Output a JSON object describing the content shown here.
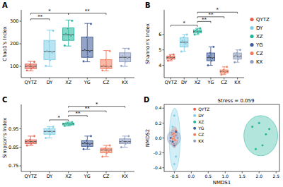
{
  "chart_data": [
    {
      "type": "box",
      "title": "A",
      "y_label": "Chao1's Index",
      "categories": [
        "QYTZ",
        "DY",
        "XZ",
        "YG",
        "CZ",
        "KX"
      ],
      "colors": [
        "#e5604f",
        "#7fcde6",
        "#22b59a",
        "#3d5a99",
        "#f27d5e",
        "#8e9dbf"
      ],
      "ylim": [
        50,
        350
      ],
      "yticks": [
        100,
        200,
        300
      ],
      "boxes": [
        {
          "min": 80,
          "q1": 90,
          "median": 100,
          "q3": 110,
          "max": 122
        },
        {
          "min": 100,
          "q1": 130,
          "median": 165,
          "q3": 215,
          "max": 260
        },
        {
          "min": 190,
          "q1": 215,
          "median": 240,
          "q3": 270,
          "max": 305
        },
        {
          "min": 120,
          "q1": 140,
          "median": 170,
          "q3": 230,
          "max": 290
        },
        {
          "min": 80,
          "q1": 90,
          "median": 100,
          "q3": 130,
          "max": 170
        },
        {
          "min": 100,
          "q1": 120,
          "median": 140,
          "q3": 160,
          "max": 180
        }
      ],
      "points": [
        [
          82,
          90,
          96,
          102,
          108,
          120
        ],
        [
          102,
          128,
          160,
          170,
          210,
          258
        ],
        [
          192,
          218,
          235,
          245,
          268,
          302
        ],
        [
          122,
          142,
          165,
          175,
          228,
          288
        ],
        [
          82,
          92,
          98,
          104,
          128,
          168
        ],
        [
          102,
          122,
          135,
          145,
          158,
          178
        ]
      ],
      "significance": [
        {
          "groups": [
            "QYTZ",
            "XZ"
          ],
          "label": "*",
          "y": 335
        },
        {
          "groups": [
            "XZ",
            "CZ"
          ],
          "label": "**",
          "y": 335
        },
        {
          "groups": [
            "QYTZ",
            "DY"
          ],
          "label": "**",
          "y": 310
        }
      ]
    },
    {
      "type": "box",
      "title": "B",
      "y_label": "Shannon's Index",
      "categories": [
        "QYTZ",
        "DY",
        "XZ",
        "YG",
        "CZ",
        "KX"
      ],
      "colors": [
        "#e5604f",
        "#7fcde6",
        "#22b59a",
        "#3d5a99",
        "#f27d5e",
        "#8e9dbf"
      ],
      "ylim": [
        3.2,
        7.6
      ],
      "yticks": [
        4,
        5,
        6
      ],
      "boxes": [
        {
          "min": 4.3,
          "q1": 4.4,
          "median": 4.5,
          "q3": 4.6,
          "max": 4.7
        },
        {
          "min": 4.9,
          "q1": 5.2,
          "median": 5.5,
          "q3": 5.8,
          "max": 6.0
        },
        {
          "min": 6.0,
          "q1": 6.1,
          "median": 6.2,
          "q3": 6.3,
          "max": 6.4
        },
        {
          "min": 4.0,
          "q1": 4.3,
          "median": 4.5,
          "q3": 4.8,
          "max": 5.2
        },
        {
          "min": 3.4,
          "q1": 3.5,
          "median": 3.6,
          "q3": 3.7,
          "max": 3.9
        },
        {
          "min": 4.2,
          "q1": 4.4,
          "median": 4.6,
          "q3": 4.8,
          "max": 5.0
        }
      ],
      "points": [
        [
          4.3,
          4.4,
          4.45,
          4.55,
          4.6,
          4.7
        ],
        [
          4.9,
          5.2,
          5.4,
          5.6,
          5.8,
          6.0
        ],
        [
          6.0,
          6.1,
          6.2,
          6.25,
          6.3,
          6.4
        ],
        [
          4.0,
          4.3,
          4.45,
          4.6,
          4.8,
          5.2
        ],
        [
          3.4,
          3.5,
          3.55,
          3.65,
          3.7,
          3.9
        ],
        [
          4.2,
          4.4,
          4.55,
          4.65,
          4.8,
          5.0
        ]
      ],
      "significance": [
        {
          "groups": [
            "XZ",
            "KX"
          ],
          "label": "*",
          "y": 7.45
        },
        {
          "groups": [
            "XZ",
            "CZ"
          ],
          "label": "**",
          "y": 7.15
        },
        {
          "groups": [
            "XZ",
            "YG"
          ],
          "label": "**",
          "y": 6.85
        },
        {
          "groups": [
            "QYTZ",
            "XZ"
          ],
          "label": "*",
          "y": 6.6
        }
      ]
    },
    {
      "type": "box",
      "title": "C",
      "y_label": "Simpson's Index",
      "categories": [
        "QYTZ",
        "DY",
        "XZ",
        "YG",
        "CZ",
        "KX"
      ],
      "colors": [
        "#e5604f",
        "#7fcde6",
        "#22b59a",
        "#3d5a99",
        "#f27d5e",
        "#8e9dbf"
      ],
      "ylim": [
        0.72,
        1.08
      ],
      "yticks": [
        0.75,
        0.85,
        0.95
      ],
      "boxes": [
        {
          "min": 0.86,
          "q1": 0.87,
          "median": 0.88,
          "q3": 0.89,
          "max": 0.91
        },
        {
          "min": 0.9,
          "q1": 0.92,
          "median": 0.935,
          "q3": 0.95,
          "max": 0.96
        },
        {
          "min": 0.965,
          "q1": 0.97,
          "median": 0.975,
          "q3": 0.98,
          "max": 0.985
        },
        {
          "min": 0.84,
          "q1": 0.855,
          "median": 0.87,
          "q3": 0.885,
          "max": 0.91
        },
        {
          "min": 0.8,
          "q1": 0.82,
          "median": 0.835,
          "q3": 0.845,
          "max": 0.86
        },
        {
          "min": 0.85,
          "q1": 0.87,
          "median": 0.88,
          "q3": 0.895,
          "max": 0.91
        }
      ],
      "points": [
        [
          0.86,
          0.87,
          0.875,
          0.885,
          0.89,
          0.91
        ],
        [
          0.9,
          0.92,
          0.93,
          0.94,
          0.95,
          0.96
        ],
        [
          0.965,
          0.97,
          0.973,
          0.977,
          0.98,
          0.985
        ],
        [
          0.84,
          0.855,
          0.865,
          0.875,
          0.885,
          0.91
        ],
        [
          0.8,
          0.82,
          0.83,
          0.84,
          0.845,
          0.86
        ],
        [
          0.85,
          0.87,
          0.875,
          0.885,
          0.895,
          0.91
        ]
      ],
      "significance": [
        {
          "groups": [
            "XZ",
            "KX"
          ],
          "label": "*",
          "y": 1.07
        },
        {
          "groups": [
            "XZ",
            "CZ"
          ],
          "label": "**",
          "y": 1.045
        },
        {
          "groups": [
            "XZ",
            "YG"
          ],
          "label": "**",
          "y": 1.02
        },
        {
          "groups": [
            "DY",
            "XZ"
          ],
          "label": "*",
          "y": 0.997
        }
      ]
    },
    {
      "type": "scatter",
      "title": "D",
      "x_label": "NMDS1",
      "y_label": "NMDS2",
      "annotations": [
        "Stress = 0.059"
      ],
      "xlim": [
        -0.8,
        2.6
      ],
      "xticks": [
        -0.5,
        {
          "value": 0,
          "label": "0.0"
        },
        0.5,
        {
          "value": 1,
          "label": "1.0"
        },
        1.5,
        {
          "value": 2,
          "label": "2.0"
        },
        2.5
      ],
      "ylim": [
        -0.45,
        0.45
      ],
      "yticks": [
        -0.4,
        -0.2,
        {
          "value": 0,
          "label": "0.0"
        },
        0.2,
        0.4
      ],
      "series": [
        {
          "name": "QYTZ",
          "color": "#e5604f",
          "x": [
            -0.55,
            -0.5,
            -0.45,
            -0.52,
            -0.48
          ],
          "y": [
            0.05,
            -0.02,
            0.1,
            -0.08,
            0.02
          ],
          "ellipse": {
            "cx": -0.5,
            "cy": 0.01,
            "rx": 0.1,
            "ry": 0.14
          }
        },
        {
          "name": "DY",
          "color": "#7fcde6",
          "x": [
            -0.5,
            -0.45,
            -0.55,
            -0.5,
            -0.42
          ],
          "y": [
            0.3,
            -0.25,
            0.15,
            -0.35,
            0.0
          ],
          "ellipse": {
            "cx": -0.49,
            "cy": -0.02,
            "rx": 0.16,
            "ry": 0.42
          }
        },
        {
          "name": "XZ",
          "color": "#22b59a",
          "x": [
            1.8,
            2.0,
            2.2,
            2.1,
            1.9,
            2.3
          ],
          "y": [
            0.15,
            0.2,
            0.05,
            -0.1,
            -0.15,
            0.12
          ],
          "ellipse": {
            "cx": 2.05,
            "cy": 0.03,
            "rx": 0.5,
            "ry": 0.27
          }
        },
        {
          "name": "YG",
          "color": "#3d5a99",
          "x": [
            -0.6,
            -0.5,
            -0.55,
            -0.45,
            -0.5
          ],
          "y": [
            0.0,
            0.05,
            -0.05,
            0.08,
            -0.1
          ]
        },
        {
          "name": "CZ",
          "color": "#f27d5e",
          "x": [
            -0.5,
            -0.48,
            -0.52,
            -0.55,
            -0.46
          ],
          "y": [
            0.02,
            -0.03,
            0.06,
            -0.01,
            0.04
          ]
        },
        {
          "name": "KX",
          "color": "#8e9dbf",
          "x": [
            -0.62,
            -0.45,
            -0.5,
            -0.58,
            -0.4
          ],
          "y": [
            -0.04,
            0.03,
            -0.08,
            0.07,
            0.0
          ],
          "ellipse": {
            "cx": -0.51,
            "cy": 0.0,
            "rx": 0.2,
            "ry": 0.1
          }
        }
      ]
    }
  ]
}
